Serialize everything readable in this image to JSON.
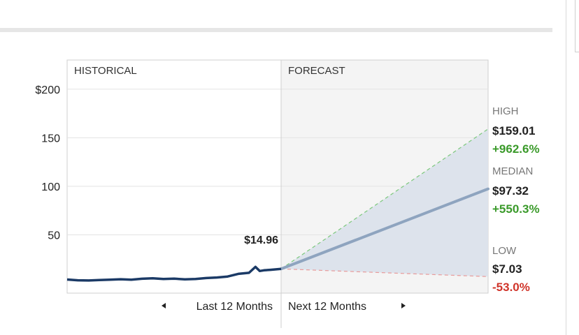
{
  "chart_data": {
    "type": "line",
    "title": "",
    "sections": {
      "historical": "HISTORICAL",
      "forecast": "FORECAST"
    },
    "y_ticks": [
      "$200",
      "150",
      "100",
      "50"
    ],
    "y_tick_values": [
      200,
      150,
      100,
      50
    ],
    "ylim": [
      -10,
      230
    ],
    "x_nav": {
      "prev": "Last 12 Months",
      "next": "Next 12 Months"
    },
    "grid": true,
    "historical_series": {
      "name": "",
      "x": [
        0,
        0.05,
        0.1,
        0.15,
        0.2,
        0.25,
        0.3,
        0.35,
        0.4,
        0.45,
        0.5,
        0.55,
        0.6,
        0.65,
        0.7,
        0.75,
        0.8,
        0.85,
        0.88,
        0.9,
        0.92,
        0.95,
        1.0
      ],
      "values": [
        4,
        3.2,
        3.0,
        3.5,
        3.8,
        4.3,
        3.9,
        4.8,
        5.3,
        4.6,
        4.9,
        4.2,
        4.6,
        5.5,
        6.1,
        7.1,
        9.8,
        10.9,
        17.0,
        12.8,
        13.5,
        14.0,
        14.96
      ]
    },
    "current": {
      "label": "$14.96",
      "value": 14.96
    },
    "forecast": {
      "high": {
        "caption": "HIGH",
        "price": "$159.01",
        "change": "+962.6%",
        "value": 159.01
      },
      "median": {
        "caption": "MEDIAN",
        "price": "$97.32",
        "change": "+550.3%",
        "value": 97.32
      },
      "low": {
        "caption": "LOW",
        "price": "$7.03",
        "change": "-53.0%",
        "value": 7.03
      }
    },
    "colors": {
      "historical_line": "#1b3a66",
      "median_line": "#8ea4bf",
      "band_fill": "#dde3ec",
      "high_line": "#7cc87c",
      "low_line": "#e89a9a",
      "positive": "#3a9a2a",
      "negative": "#d0342a",
      "caption": "#777777",
      "forecast_bg": "#f4f4f4",
      "grid": "#e3e3e3"
    }
  }
}
